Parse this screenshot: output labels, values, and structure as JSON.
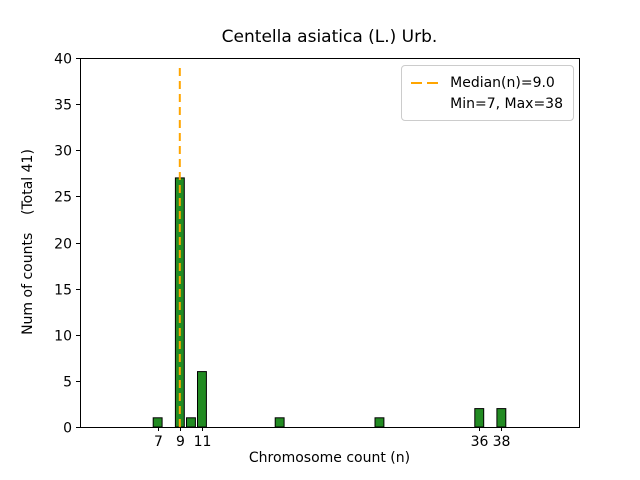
{
  "figure": {
    "background": "#ffffff"
  },
  "chart_data": {
    "type": "bar",
    "title": "Centella asiatica (L.) Urb.",
    "xlabel": "Chromosome count (n)",
    "ylabel": "Num of counts    (Total 41)",
    "total_counts": 41,
    "x": [
      7,
      9,
      10,
      11,
      18,
      27,
      36,
      38
    ],
    "values": [
      1,
      27,
      1,
      6,
      1,
      1,
      2,
      2
    ],
    "bar_width": 0.8,
    "xlim": [
      0,
      45
    ],
    "ylim": [
      0,
      40
    ],
    "yticks": [
      0,
      5,
      10,
      15,
      20,
      25,
      30,
      35,
      40
    ],
    "xticks": [
      7,
      9,
      11,
      36,
      38
    ],
    "median": 9.0,
    "min": 7,
    "max": 38,
    "median_line_style": "dashed",
    "grid": false,
    "legend": {
      "position": "upper-right",
      "entries": [
        "Median(n)=9.0",
        "Min=7, Max=38"
      ]
    },
    "colors": {
      "bar_fill": "#228B22",
      "bar_edge": "#000000",
      "median_line": "#FFA500",
      "legend_border": "#cccccc",
      "axis": "#000000"
    }
  }
}
